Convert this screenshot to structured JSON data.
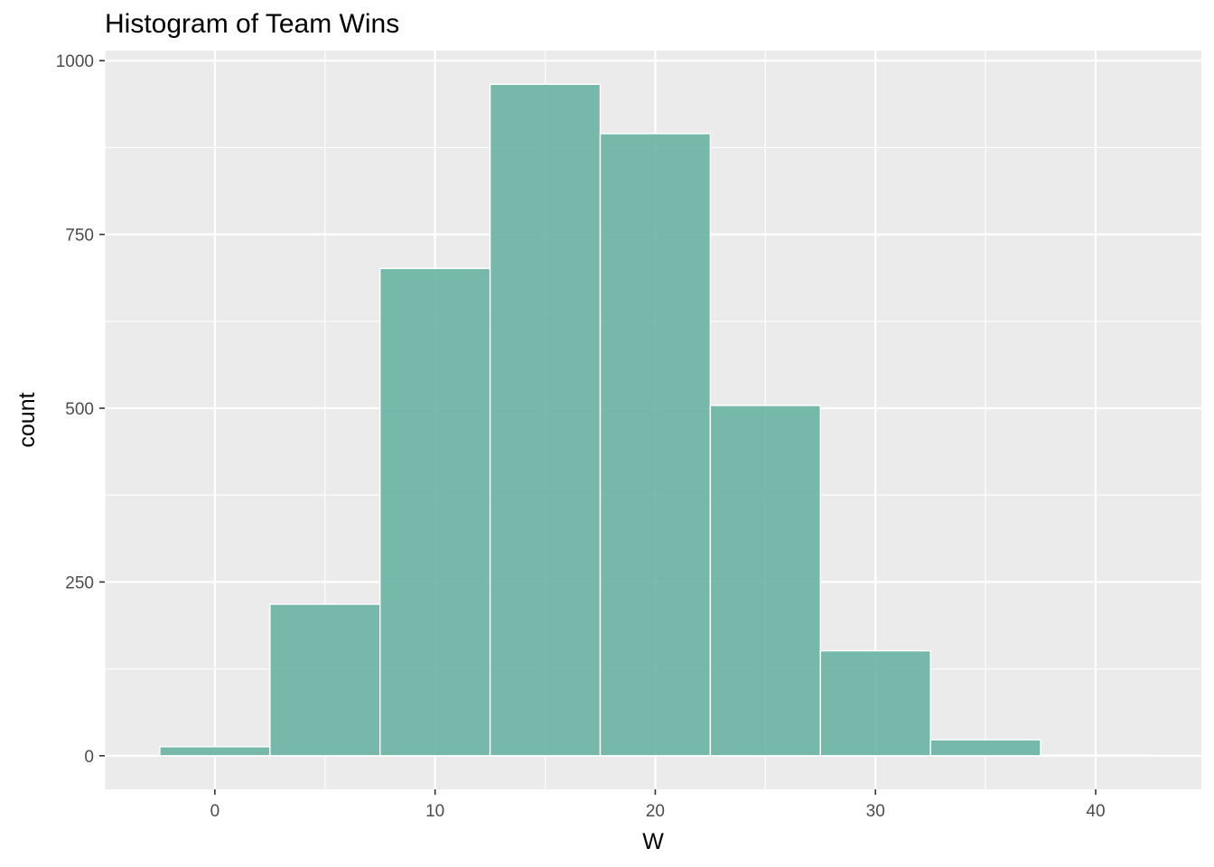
{
  "chart_data": {
    "type": "histogram",
    "title": "Histogram of Team Wins",
    "xlabel": "W",
    "ylabel": "count",
    "binwidth": 5,
    "bins": [
      {
        "x_start": -2.5,
        "x_end": 2.5,
        "count": 13
      },
      {
        "x_start": 2.5,
        "x_end": 7.5,
        "count": 218
      },
      {
        "x_start": 7.5,
        "x_end": 12.5,
        "count": 701
      },
      {
        "x_start": 12.5,
        "x_end": 17.5,
        "count": 966
      },
      {
        "x_start": 17.5,
        "x_end": 22.5,
        "count": 895
      },
      {
        "x_start": 22.5,
        "x_end": 27.5,
        "count": 504
      },
      {
        "x_start": 27.5,
        "x_end": 32.5,
        "count": 151
      },
      {
        "x_start": 32.5,
        "x_end": 37.5,
        "count": 23
      },
      {
        "x_start": 37.5,
        "x_end": 42.5,
        "count": 1
      }
    ],
    "xlim": [
      -5,
      44.8
    ],
    "ylim": [
      -48.3,
      1014.5
    ],
    "x_ticks": [
      0,
      10,
      20,
      30,
      40
    ],
    "x_minor_ticks": [
      -5,
      5,
      15,
      25,
      35
    ],
    "y_ticks": [
      0,
      250,
      500,
      750,
      1000
    ],
    "y_minor_ticks": [
      125,
      375,
      625,
      875
    ],
    "grid": true,
    "legend": "none",
    "colors": {
      "bar_fill": "#69b3a2",
      "bar_stroke": "#ffffff",
      "panel_background": "#ebebeb",
      "grid": "#ffffff",
      "tick_label": "#4d4d4d",
      "tick_mark": "#333333"
    }
  }
}
